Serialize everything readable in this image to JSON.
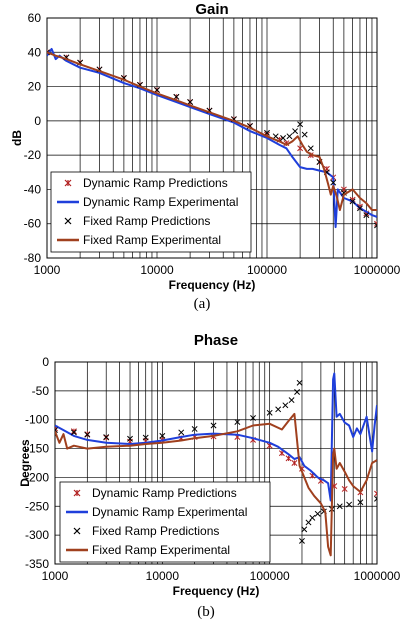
{
  "chart_data": [
    {
      "panel": "gain",
      "type": "line",
      "title": "Gain",
      "xlabel": "Frequency (Hz)",
      "ylabel": "dB",
      "caption": "(a)",
      "x_scale": "log",
      "xlim": [
        1000,
        1000000
      ],
      "ylim": [
        -80,
        60
      ],
      "x_ticks": [
        1000,
        10000,
        100000,
        1000000
      ],
      "x_tick_labels": [
        "1000",
        "10000",
        "100000",
        "1000000"
      ],
      "y_ticks": [
        60,
        40,
        20,
        0,
        -20,
        -40,
        -60,
        -80
      ],
      "y_tick_labels": [
        "60",
        "40",
        "20",
        "0",
        "-20",
        "-40",
        "-60",
        "-80"
      ],
      "grid": true,
      "legend_position": "bottom-left",
      "series": [
        {
          "name": "Dynamic Ramp Predictions",
          "marker": "star",
          "color": "#b22222",
          "x": [
            1000,
            1500,
            2000,
            3000,
            5000,
            7000,
            10000,
            15000,
            20000,
            30000,
            50000,
            70000,
            100000,
            130000,
            150000,
            200000,
            250000,
            300000,
            350000,
            400000,
            500000,
            600000,
            700000,
            800000,
            1000000
          ],
          "y": [
            40,
            37,
            34,
            30,
            25,
            21,
            18,
            14,
            11,
            6,
            1,
            -3,
            -8,
            -11,
            -13,
            -16,
            -20,
            -24,
            -28,
            -33,
            -40,
            -46,
            -50,
            -54,
            -60
          ]
        },
        {
          "name": "Dynamic Ramp Experimental",
          "line": "solid",
          "color": "#1f3fdb",
          "x": [
            1000,
            1100,
            1200,
            1300,
            1500,
            2000,
            3000,
            5000,
            7000,
            10000,
            15000,
            20000,
            30000,
            50000,
            70000,
            100000,
            130000,
            150000,
            170000,
            200000,
            230000,
            260000,
            300000,
            350000,
            400000,
            420000,
            440000,
            500000,
            600000,
            700000,
            800000,
            900000,
            1000000
          ],
          "y": [
            38,
            42,
            36,
            38,
            35,
            31,
            28,
            22,
            19,
            15,
            11,
            8,
            4,
            -1,
            -6,
            -10,
            -14,
            -16,
            -21,
            -27,
            -28,
            -28,
            -29,
            -30,
            -33,
            -62,
            -40,
            -45,
            -47,
            -51,
            -53,
            -55,
            -56
          ]
        },
        {
          "name": "Fixed Ramp Predictions",
          "marker": "x",
          "color": "#000000",
          "x": [
            1000,
            1500,
            2000,
            3000,
            5000,
            7000,
            10000,
            15000,
            20000,
            30000,
            50000,
            70000,
            100000,
            120000,
            140000,
            160000,
            180000,
            200000,
            220000,
            250000,
            300000,
            350000,
            400000,
            500000,
            600000,
            700000,
            800000,
            1000000
          ],
          "y": [
            40,
            37,
            34,
            30,
            25,
            21,
            18,
            14,
            11,
            6,
            1,
            -3,
            -7,
            -9,
            -10,
            -9,
            -6,
            -2,
            -8,
            -16,
            -24,
            -30,
            -36,
            -42,
            -47,
            -51,
            -55,
            -61
          ]
        },
        {
          "name": "Fixed Ramp Experimental",
          "line": "solid",
          "color": "#a0401e",
          "x": [
            1000,
            1200,
            1500,
            2000,
            3000,
            5000,
            7000,
            10000,
            15000,
            20000,
            30000,
            50000,
            70000,
            100000,
            130000,
            150000,
            170000,
            190000,
            210000,
            230000,
            260000,
            300000,
            330000,
            360000,
            380000,
            400000,
            430000,
            460000,
            500000,
            600000,
            700000,
            800000,
            900000,
            1000000
          ],
          "y": [
            40,
            38,
            36,
            33,
            29,
            24,
            20,
            16,
            12,
            9,
            5,
            0,
            -4,
            -9,
            -12,
            -14,
            -12,
            -9,
            -14,
            -18,
            -20,
            -21,
            -28,
            -37,
            -43,
            -38,
            -44,
            -52,
            -43,
            -40,
            -45,
            -48,
            -52,
            -52
          ]
        }
      ]
    },
    {
      "panel": "phase",
      "type": "line",
      "title": "Phase",
      "xlabel": "Frequency (Hz)",
      "ylabel": "Degrees",
      "caption": "(b)",
      "x_scale": "log",
      "xlim": [
        1000,
        1000000
      ],
      "ylim": [
        -350,
        0
      ],
      "x_ticks": [
        1000,
        10000,
        100000,
        1000000
      ],
      "x_tick_labels": [
        "1000",
        "10000",
        "100000",
        "1000000"
      ],
      "y_ticks": [
        0,
        -50,
        -100,
        -150,
        -200,
        -250,
        -300,
        -350
      ],
      "y_tick_labels": [
        "0",
        "-50",
        "-100",
        "-150",
        "-200",
        "-250",
        "-300",
        "-350"
      ],
      "grid": true,
      "legend_position": "bottom-left",
      "series": [
        {
          "name": "Dynamic Ramp Predictions",
          "marker": "star",
          "color": "#b22222",
          "x": [
            1000,
            1500,
            2000,
            3000,
            5000,
            7000,
            10000,
            15000,
            20000,
            30000,
            50000,
            70000,
            100000,
            130000,
            150000,
            170000,
            200000,
            250000,
            300000,
            400000,
            500000,
            700000,
            1000000
          ],
          "y": [
            -115,
            -120,
            -125,
            -131,
            -138,
            -137,
            -135,
            -132,
            -130,
            -129,
            -130,
            -135,
            -145,
            -158,
            -167,
            -175,
            -185,
            -197,
            -206,
            -215,
            -220,
            -226,
            -228
          ]
        },
        {
          "name": "Dynamic Ramp Experimental",
          "line": "solid",
          "color": "#1f3fdb",
          "x": [
            1000,
            1200,
            1500,
            2000,
            3000,
            5000,
            7000,
            10000,
            15000,
            20000,
            30000,
            50000,
            70000,
            100000,
            120000,
            150000,
            170000,
            190000,
            210000,
            240000,
            280000,
            320000,
            350000,
            370000,
            390000,
            400000,
            420000,
            450000,
            500000,
            550000,
            600000,
            650000,
            700000,
            800000,
            900000,
            950000,
            1000000
          ],
          "y": [
            -110,
            -118,
            -128,
            -135,
            -140,
            -142,
            -140,
            -136,
            -130,
            -126,
            -124,
            -126,
            -132,
            -140,
            -147,
            -160,
            -168,
            -165,
            -180,
            -188,
            -200,
            -205,
            -210,
            -240,
            -30,
            -20,
            -95,
            -90,
            -105,
            -110,
            -130,
            -115,
            -125,
            -95,
            -155,
            -110,
            -75
          ]
        },
        {
          "name": "Fixed Ramp Predictions",
          "marker": "x",
          "color": "#000000",
          "x": [
            1000,
            1500,
            2000,
            3000,
            5000,
            7000,
            10000,
            15000,
            20000,
            30000,
            50000,
            70000,
            100000,
            120000,
            140000,
            160000,
            180000,
            190000,
            200000,
            210000,
            230000,
            250000,
            280000,
            320000,
            380000,
            450000,
            550000,
            700000,
            1000000
          ],
          "y": [
            -118,
            -122,
            -126,
            -130,
            -133,
            -131,
            -128,
            -122,
            -116,
            -110,
            -104,
            -97,
            -88,
            -82,
            -75,
            -66,
            -52,
            -36,
            -310,
            -290,
            -278,
            -270,
            -263,
            -259,
            -255,
            -250,
            -247,
            -243,
            -237
          ]
        },
        {
          "name": "Fixed Ramp Experimental",
          "line": "solid",
          "color": "#a0401e",
          "x": [
            1000,
            1100,
            1200,
            1300,
            1500,
            2000,
            3000,
            5000,
            7000,
            10000,
            15000,
            20000,
            30000,
            50000,
            70000,
            100000,
            130000,
            150000,
            170000,
            190000,
            210000,
            230000,
            260000,
            300000,
            330000,
            350000,
            370000,
            390000,
            400000,
            420000,
            450000,
            500000,
            550000,
            600000,
            700000,
            800000,
            900000,
            1000000
          ],
          "y": [
            -120,
            -140,
            -125,
            -150,
            -145,
            -150,
            -147,
            -145,
            -142,
            -140,
            -136,
            -132,
            -128,
            -120,
            -110,
            -107,
            -117,
            -102,
            -90,
            -180,
            -200,
            -218,
            -232,
            -245,
            -260,
            -320,
            -335,
            -160,
            -150,
            -185,
            -175,
            -190,
            -205,
            -215,
            -225,
            -205,
            -175,
            -170
          ]
        }
      ]
    }
  ]
}
